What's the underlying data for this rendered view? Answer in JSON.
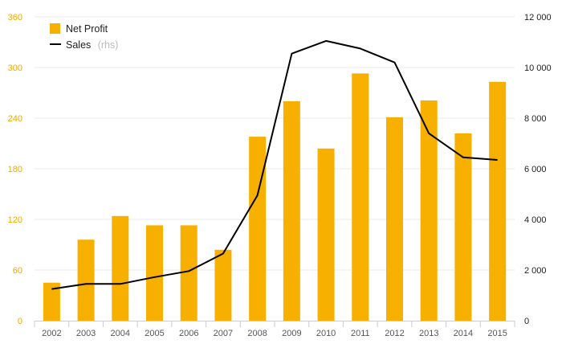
{
  "chart_data": {
    "type": "bar",
    "categories": [
      "2002",
      "2003",
      "2004",
      "2005",
      "2006",
      "2007",
      "2008",
      "2009",
      "2010",
      "2011",
      "2012",
      "2013",
      "2014",
      "2015"
    ],
    "series": [
      {
        "name": "Net Profit",
        "type": "bar",
        "axis": "left",
        "color": "#f7b000",
        "values": [
          45,
          96,
          124,
          113,
          113,
          84,
          218,
          260,
          204,
          293,
          241,
          261,
          222,
          283
        ]
      },
      {
        "name": "Sales",
        "name_suffix": "(rhs)",
        "type": "line",
        "axis": "right",
        "color": "#000000",
        "values": [
          1250,
          1450,
          1450,
          1720,
          1960,
          2650,
          4950,
          10550,
          11050,
          10750,
          10200,
          7400,
          6450,
          6350
        ]
      }
    ],
    "y_left": {
      "min": 0,
      "max": 360,
      "ticks": [
        "0",
        "60",
        "120",
        "180",
        "240",
        "300",
        "360"
      ],
      "color": "#f0a800"
    },
    "y_right": {
      "min": 0,
      "max": 12000,
      "ticks": [
        "0",
        "2 000",
        "4 000",
        "6 000",
        "8 000",
        "10 000",
        "12 000"
      ]
    },
    "grid": true,
    "legend_position": "top-left"
  }
}
